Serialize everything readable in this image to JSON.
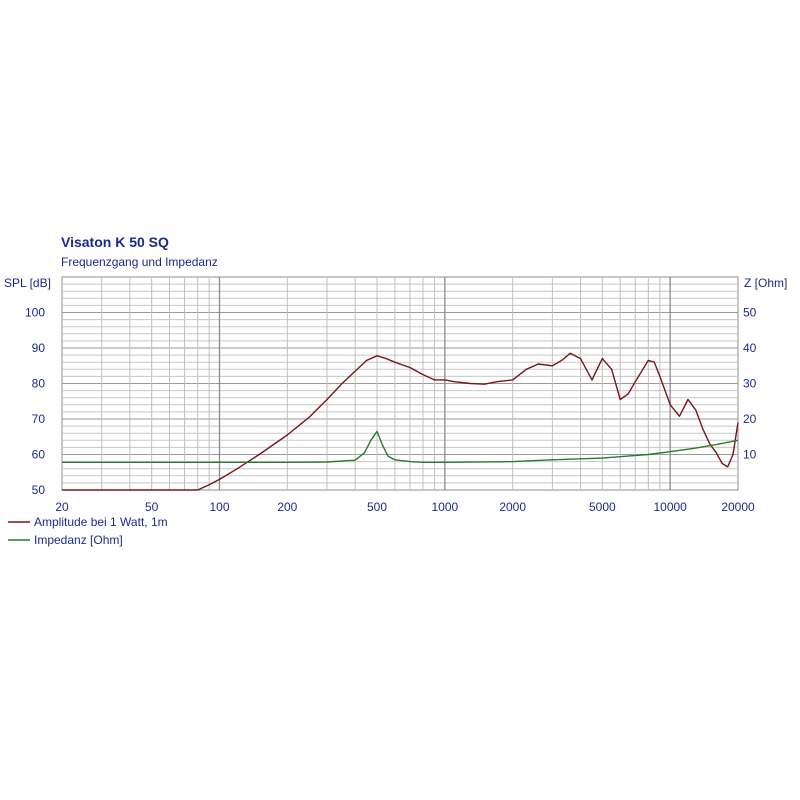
{
  "chart_data": {
    "type": "line",
    "title": "Visaton K 50 SQ",
    "subtitle": "Frequenzgang und Impedanz",
    "ylabel_left": "SPL [dB]",
    "ylabel_right": "Z [Ohm]",
    "x_scale": "log",
    "xlim": [
      20,
      20000
    ],
    "ylim_left": [
      50,
      110
    ],
    "ylim_right": [
      0,
      60
    ],
    "x_ticks": [
      20,
      50,
      100,
      200,
      500,
      1000,
      2000,
      5000,
      10000,
      20000
    ],
    "y_ticks_left": [
      50,
      60,
      70,
      80,
      90,
      100
    ],
    "y_ticks_right": [
      10,
      20,
      30,
      40,
      50
    ],
    "grid": true,
    "legend_position": "bottom-left",
    "colors": {
      "spl": "#7a1515",
      "impedance": "#2a7a2a",
      "grid": "#b4b4b4",
      "text": "#1a2a8c"
    },
    "series": [
      {
        "name": "Amplitude bei 1 Watt, 1m",
        "axis": "left",
        "x": [
          20,
          50,
          80,
          90,
          100,
          120,
          150,
          200,
          250,
          300,
          350,
          400,
          450,
          500,
          550,
          600,
          700,
          800,
          900,
          1000,
          1100,
          1300,
          1500,
          1700,
          2000,
          2300,
          2600,
          3000,
          3300,
          3600,
          4000,
          4500,
          5000,
          5500,
          6000,
          6500,
          7000,
          8000,
          8500,
          9000,
          10000,
          11000,
          12000,
          13000,
          14000,
          15000,
          16000,
          17000,
          18000,
          19000,
          20000
        ],
        "values": [
          50,
          50,
          50,
          51.5,
          53,
          56,
          60,
          65.5,
          70.5,
          75.5,
          80,
          83.5,
          86.5,
          87.8,
          87,
          86,
          84.5,
          82.5,
          81,
          81,
          80.5,
          80,
          79.8,
          80.5,
          81,
          84,
          85.5,
          85,
          86.5,
          88.5,
          87,
          81,
          87,
          84,
          75.5,
          77,
          80.5,
          86.5,
          86,
          82,
          74,
          70.8,
          75.5,
          72.5,
          67,
          63,
          60.5,
          57.5,
          56.5,
          60,
          69
        ]
      },
      {
        "name": "Impedanz [Ohm]",
        "axis": "right",
        "x": [
          20,
          100,
          200,
          300,
          400,
          440,
          470,
          500,
          530,
          560,
          600,
          700,
          800,
          1000,
          2000,
          3000,
          5000,
          8000,
          10000,
          13000,
          16000,
          20000
        ],
        "values": [
          7.8,
          7.8,
          7.8,
          7.9,
          8.4,
          10.5,
          14,
          16.5,
          12.5,
          9.5,
          8.5,
          8.0,
          7.8,
          7.8,
          8.0,
          8.5,
          9.0,
          10.0,
          10.8,
          11.8,
          12.8,
          14.0
        ]
      }
    ]
  }
}
